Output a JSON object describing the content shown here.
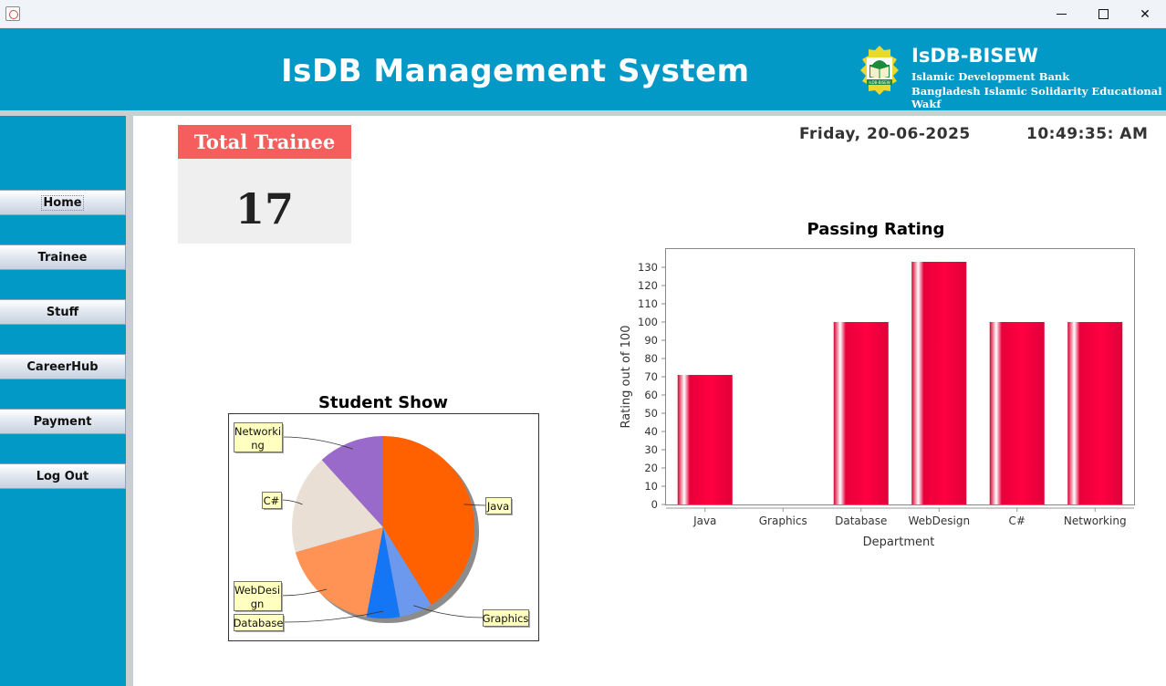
{
  "window": {
    "minimize_glyph": "",
    "maximize_glyph": "",
    "close_glyph": "✕"
  },
  "header": {
    "title": "IsDB Management System",
    "org_short": "IsDB-BISEW",
    "org_line1": "Islamic Development Bank",
    "org_line2": "Bangladesh Islamic Solidarity Educational Wakf",
    "logo_text": "IsDB-BISEW",
    "logo_icon": "book-dome-logo-icon"
  },
  "sidebar": {
    "items": [
      {
        "label": "Home"
      },
      {
        "label": "Trainee"
      },
      {
        "label": "Stuff"
      },
      {
        "label": "CareerHub"
      },
      {
        "label": "Payment"
      },
      {
        "label": "Log Out"
      }
    ]
  },
  "dashboard": {
    "card_title": "Total Trainee",
    "card_value": "17",
    "date": "Friday, 20-06-2025",
    "time": "10:49:35: AM"
  },
  "colors": {
    "header_bg": "#0299c6",
    "card_head": "#f65e5e",
    "bar": "#e8003a"
  },
  "chart_data": [
    {
      "type": "pie",
      "title": "Student Show",
      "categories": [
        "Java",
        "Graphics",
        "Database",
        "WebDesign",
        "C#",
        "Networking"
      ],
      "values": [
        7,
        1,
        1,
        3,
        3,
        2
      ],
      "colors": [
        "#ff6000",
        "#6c99ee",
        "#1475f5",
        "#ff9356",
        "#eadfd4",
        "#9a6acb"
      ],
      "legend": "callout labels"
    },
    {
      "type": "bar",
      "title": "Passing Rating",
      "xlabel": "Department",
      "ylabel": "Rating out of 100",
      "categories": [
        "Java",
        "Graphics",
        "Database",
        "WebDesign",
        "C#",
        "Networking"
      ],
      "values": [
        71,
        0,
        100,
        133,
        100,
        100
      ],
      "ylim": [
        0,
        140
      ],
      "yticks": [
        0,
        10,
        20,
        30,
        40,
        50,
        60,
        70,
        80,
        90,
        100,
        110,
        120,
        130
      ],
      "grid": false
    }
  ]
}
